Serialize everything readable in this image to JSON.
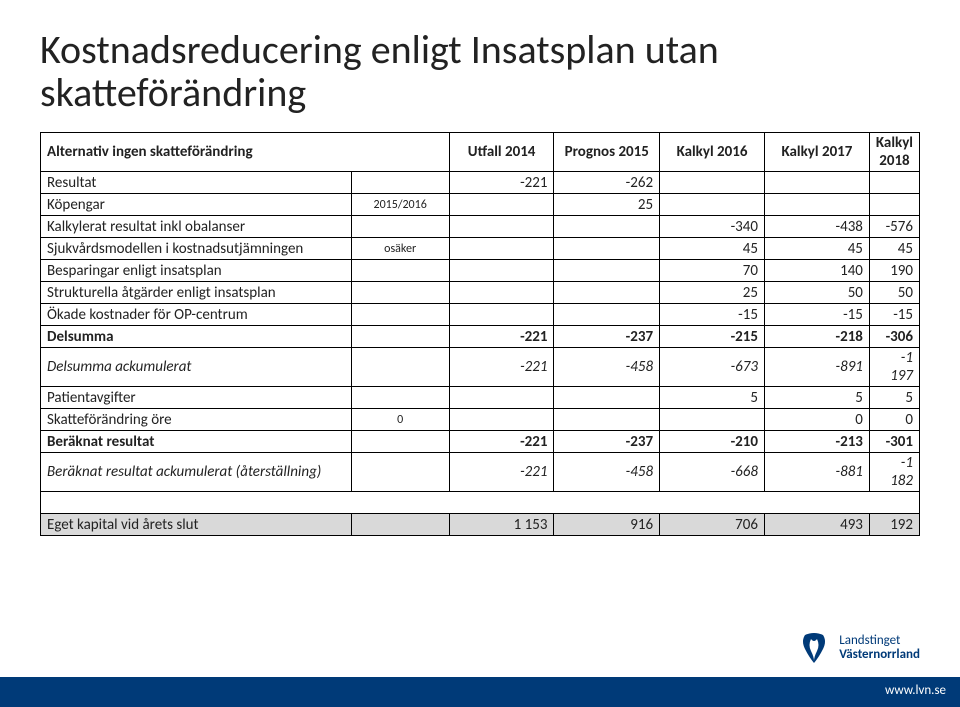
{
  "title": "Kostnadsreducering enligt Insatsplan utan skatteförändring",
  "table": {
    "header": {
      "label": "Alternativ ingen skatteförändring",
      "cols": [
        "Utfall 2014",
        "Prognos 2015",
        "Kalkyl 2016",
        "Kalkyl 2017",
        "Kalkyl 2018"
      ]
    },
    "rows": [
      {
        "type": "plain",
        "label": "Resultat",
        "note": "",
        "vals": [
          "-221",
          "-262",
          "",
          "",
          ""
        ]
      },
      {
        "type": "plain",
        "label": "Köpengar",
        "note": "2015/2016",
        "vals": [
          "",
          "25",
          "",
          "",
          ""
        ]
      },
      {
        "type": "plain",
        "label": "Kalkylerat resultat inkl obalanser",
        "note": "",
        "vals": [
          "",
          "",
          "-340",
          "-438",
          "-576"
        ]
      },
      {
        "type": "plain",
        "label": "Sjukvårdsmodellen i kostnadsutjämningen",
        "note": "osäker",
        "vals": [
          "",
          "",
          "45",
          "45",
          "45"
        ]
      },
      {
        "type": "plain",
        "label": "Besparingar enligt insatsplan",
        "note": "",
        "vals": [
          "",
          "",
          "70",
          "140",
          "190"
        ]
      },
      {
        "type": "plain",
        "label": "Strukturella åtgärder enligt insatsplan",
        "note": "",
        "vals": [
          "",
          "",
          "25",
          "50",
          "50"
        ]
      },
      {
        "type": "plain",
        "label": "Ökade kostnader för OP-centrum",
        "note": "",
        "vals": [
          "",
          "",
          "-15",
          "-15",
          "-15"
        ]
      },
      {
        "type": "bold",
        "label": "Delsumma",
        "note": "",
        "vals": [
          "-221",
          "-237",
          "-215",
          "-218",
          "-306"
        ]
      },
      {
        "type": "italic",
        "label": "Delsumma ackumulerat",
        "note": "",
        "vals": [
          "-221",
          "-458",
          "-673",
          "-891",
          "-1 197"
        ]
      },
      {
        "type": "plain",
        "label": "Patientavgifter",
        "note": "",
        "vals": [
          "",
          "",
          "5",
          "5",
          "5"
        ]
      },
      {
        "type": "plain",
        "label": "Skatteförändring öre",
        "note": "0",
        "vals": [
          "",
          "",
          "",
          "0",
          "0"
        ]
      },
      {
        "type": "bold",
        "label": "Beräknat resultat",
        "note": "",
        "vals": [
          "-221",
          "-237",
          "-210",
          "-213",
          "-301"
        ]
      },
      {
        "type": "italic",
        "label": "Beräknat resultat ackumulerat (återställning)",
        "note": "",
        "vals": [
          "-221",
          "-458",
          "-668",
          "-881",
          "-1 182"
        ]
      },
      {
        "type": "spacer"
      },
      {
        "type": "shade",
        "label": "Eget kapital vid årets slut",
        "note": "",
        "vals": [
          "1 153",
          "916",
          "706",
          "493",
          "192"
        ]
      }
    ]
  },
  "logo": {
    "line1": "Landstinget",
    "line2": "Västernorrland"
  },
  "footer": {
    "link": "www.lvn.se"
  },
  "colors": {
    "brand_blue": "#003a78",
    "shade_gray": "#d9d9d9",
    "text": "#222222",
    "white": "#ffffff",
    "border": "#000000"
  }
}
